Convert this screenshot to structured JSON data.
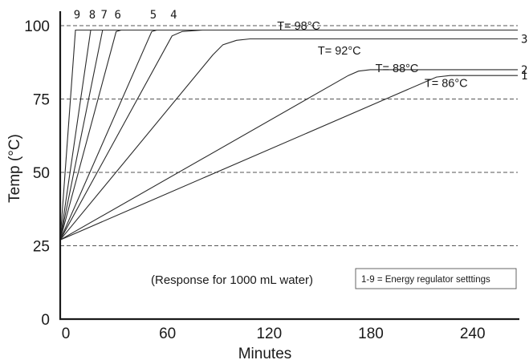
{
  "chart_data": {
    "type": "line",
    "title": "",
    "xlabel": "Minutes",
    "ylabel": "Temp (°C)",
    "xlim": [
      0,
      270
    ],
    "ylim": [
      0,
      100
    ],
    "x_ticks": [
      0,
      60,
      120,
      180,
      240
    ],
    "y_ticks": [
      0,
      25,
      50,
      75,
      100
    ],
    "gridlines_y": [
      25,
      50,
      75,
      100
    ],
    "grid": "dashed horizontal",
    "start_temp": 27,
    "series": [
      {
        "name": "9",
        "points": [
          [
            0,
            27
          ],
          [
            9,
            98.5
          ],
          [
            270,
            98.5
          ]
        ]
      },
      {
        "name": "8",
        "points": [
          [
            0,
            27
          ],
          [
            18,
            98.5
          ],
          [
            270,
            98.5
          ]
        ]
      },
      {
        "name": "7",
        "points": [
          [
            0,
            27
          ],
          [
            25,
            98.5
          ],
          [
            270,
            98.5
          ]
        ]
      },
      {
        "name": "6",
        "points": [
          [
            0,
            27
          ],
          [
            33,
            98
          ],
          [
            36,
            98.5
          ],
          [
            270,
            98.5
          ]
        ]
      },
      {
        "name": "5",
        "points": [
          [
            0,
            27
          ],
          [
            54,
            98
          ],
          [
            57,
            98.5
          ],
          [
            270,
            98.5
          ]
        ]
      },
      {
        "name": "4",
        "points": [
          [
            0,
            27
          ],
          [
            66,
            96.5
          ],
          [
            72,
            98
          ],
          [
            84,
            98.5
          ],
          [
            270,
            98.5
          ]
        ]
      },
      {
        "name": "3",
        "points": [
          [
            0,
            27
          ],
          [
            90,
            90
          ],
          [
            96,
            93.5
          ],
          [
            104,
            95
          ],
          [
            112,
            95.5
          ],
          [
            270,
            95.5
          ]
        ]
      },
      {
        "name": "2",
        "points": [
          [
            0,
            27
          ],
          [
            170,
            83
          ],
          [
            176,
            84.5
          ],
          [
            183,
            85
          ],
          [
            270,
            85
          ]
        ]
      },
      {
        "name": "1",
        "points": [
          [
            0,
            27
          ],
          [
            222,
            82.5
          ],
          [
            230,
            83
          ],
          [
            270,
            83
          ]
        ]
      }
    ],
    "temp_labels": [
      {
        "text": "T= 98°C",
        "x": 128,
        "y": 100
      },
      {
        "text": "T= 92°C",
        "x": 152,
        "y": 91.5
      },
      {
        "text": "T= 88°C",
        "x": 186,
        "y": 85.5
      },
      {
        "text": "T= 86°C",
        "x": 215,
        "y": 80.5
      }
    ],
    "note": "(Response for 1000 mL water)",
    "legend": {
      "text": "1-9 = Energy regulator setttings",
      "placement": "bottom-right"
    }
  }
}
